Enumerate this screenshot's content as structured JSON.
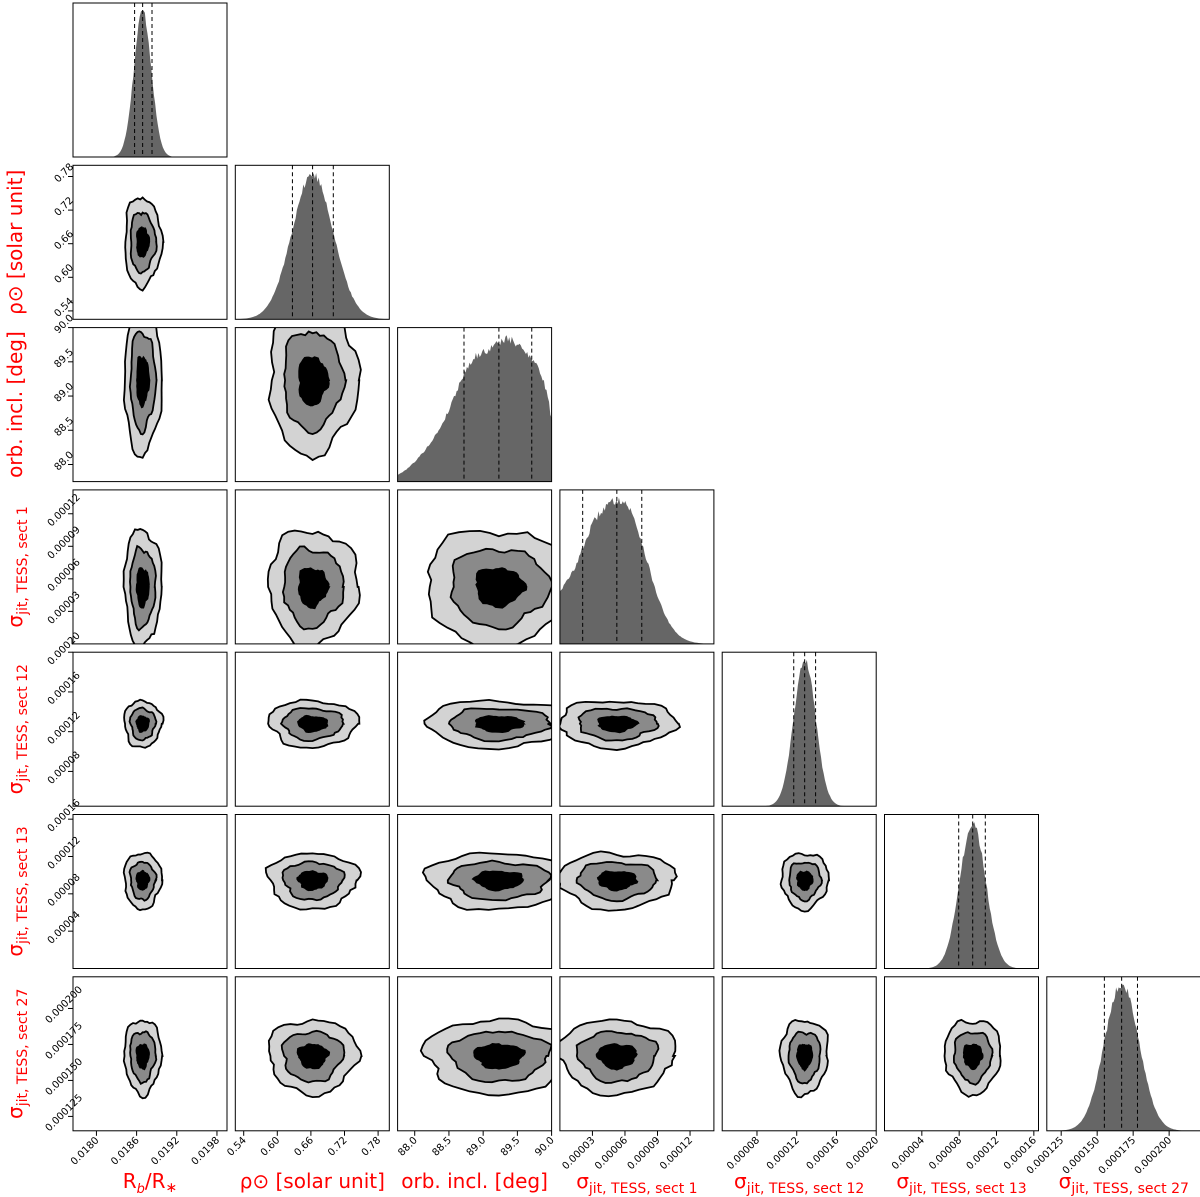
{
  "chart_data": {
    "type": "corner",
    "title": "",
    "parameters": [
      {
        "id": "rb",
        "label": "Rb/R*",
        "label_html": [
          "R",
          "b",
          "/R",
          "∗"
        ],
        "range": [
          0.01765,
          0.01995
        ],
        "ticks": [
          "0.0180",
          "0.0186",
          "0.0192",
          "0.0198"
        ],
        "y_ticks": [],
        "median": 0.01869,
        "q16": 0.01857,
        "q84": 0.01883,
        "sigma": 0.00013,
        "hist": "single"
      },
      {
        "id": "rho",
        "label": "ρ⊙ [solar unit]",
        "range": [
          0.525,
          0.8
        ],
        "ticks": [
          "0.54",
          "0.60",
          "0.66",
          "0.72",
          "0.78"
        ],
        "y_ticks": [
          "0.54",
          "0.60",
          "0.66",
          "0.72",
          "0.78"
        ],
        "median": 0.663,
        "q16": 0.627,
        "q84": 0.7,
        "sigma": 0.037,
        "hist": "single"
      },
      {
        "id": "inc",
        "label": "orb. incl. [deg]",
        "range": [
          87.75,
          90.0
        ],
        "ticks": [
          "88.0",
          "88.5",
          "89.0",
          "89.5",
          "90.0"
        ],
        "y_ticks": [
          "88.0",
          "88.5",
          "89.0",
          "89.5",
          "90.0"
        ],
        "median": 89.23,
        "q16": 88.72,
        "q84": 89.71,
        "sigma": 0.5,
        "hist": "multi"
      },
      {
        "id": "j1",
        "label": "σjit, TESS, sect 1",
        "sub": "jit, TESS, sect 1",
        "range": [
          0.0,
          0.000142
        ],
        "ticks": [
          "0.00003",
          "0.00006",
          "0.00009",
          "0.00012"
        ],
        "y_ticks": [
          "0.00003",
          "0.00006",
          "0.00009",
          "0.00012"
        ],
        "median": 5.25e-05,
        "q16": 2.1e-05,
        "q84": 7.55e-05,
        "sigma": 2.5e-05,
        "hist": "skew"
      },
      {
        "id": "j12",
        "label": "σjit, TESS, sect 12",
        "sub": "jit, TESS, sect 12",
        "range": [
          4.5e-05,
          0.0002
        ],
        "ticks": [
          "0.00008",
          "0.00012",
          "0.00016",
          "0.00020"
        ],
        "y_ticks": [
          "0.00008",
          "0.00012",
          "0.00016",
          "0.00020"
        ],
        "median": 0.000128,
        "q16": 0.000117,
        "q84": 0.000139,
        "sigma": 1.1e-05,
        "hist": "single"
      },
      {
        "id": "j13",
        "label": "σjit, TESS, sect 13",
        "sub": "jit, TESS, sect 13",
        "range": [
          0.0,
          0.000165
        ],
        "ticks": [
          "0.00004",
          "0.00008",
          "0.00012",
          "0.00016"
        ],
        "y_ticks": [
          "0.00004",
          "0.00008",
          "0.00012",
          "0.00016"
        ],
        "median": 9.45e-05,
        "q16": 7.95e-05,
        "q84": 0.000108,
        "sigma": 1.4e-05,
        "hist": "single"
      },
      {
        "id": "j27",
        "label": "σjit, TESS, sect 27",
        "sub": "jit, TESS, sect 27",
        "range": [
          0.000115,
          0.000222
        ],
        "ticks": [
          "0.000125",
          "0.000150",
          "0.000175",
          "0.000200"
        ],
        "y_ticks": [
          "0.000125",
          "0.000150",
          "0.000175",
          "0.000200"
        ],
        "median": 0.000167,
        "q16": 0.000155,
        "q84": 0.000178,
        "sigma": 1.2e-05,
        "hist": "single"
      }
    ],
    "quantile_lines": [
      "q16",
      "median",
      "q84"
    ],
    "contour_levels": 3,
    "colors": {
      "label": "#ff0000",
      "hist": "#666666",
      "c1": "#d3d3d3",
      "c2": "#8a8a8a",
      "c3": "#000000"
    }
  }
}
